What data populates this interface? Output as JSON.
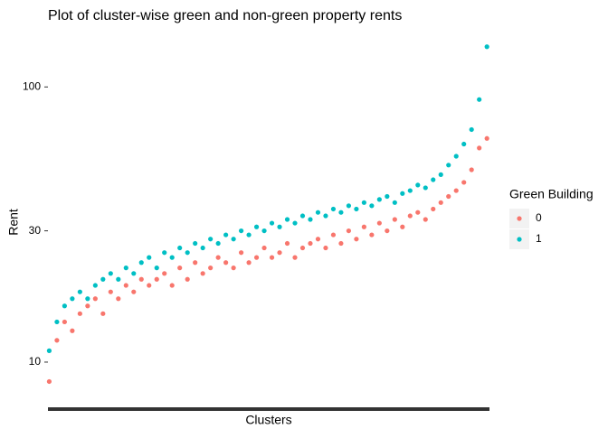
{
  "chart_data": {
    "type": "scatter",
    "title": "Plot of cluster-wise green and non-green property rents",
    "x_label": "Clusters",
    "y_label": "Rent",
    "log_y": true,
    "grid": false,
    "ylim": [
      6.8,
      153
    ],
    "yticks": [
      10,
      30,
      100
    ],
    "xlim": [
      0,
      690
    ],
    "legend_title": "Green Building",
    "legend_position": "right",
    "x": [
      2,
      14,
      26,
      38,
      50,
      62,
      74,
      86,
      98,
      110,
      122,
      134,
      146,
      158,
      170,
      182,
      194,
      206,
      218,
      230,
      242,
      254,
      266,
      278,
      290,
      302,
      314,
      326,
      338,
      350,
      362,
      374,
      386,
      398,
      410,
      422,
      434,
      446,
      458,
      470,
      482,
      494,
      506,
      518,
      530,
      542,
      554,
      566,
      578,
      590,
      602,
      614,
      626,
      638,
      650,
      662,
      674,
      686
    ],
    "series": [
      {
        "name": "0",
        "color": "#F8766D",
        "values": [
          8.5,
          12,
          14,
          13,
          15,
          16,
          17,
          15,
          18,
          17,
          19,
          18,
          20,
          19,
          20,
          21,
          19,
          22,
          20,
          23,
          21,
          22,
          24,
          23,
          22,
          25,
          23,
          24,
          26,
          24,
          25,
          27,
          24,
          26,
          27,
          28,
          26,
          29,
          27,
          30,
          28,
          31,
          29,
          32,
          30,
          33,
          31,
          34,
          35,
          33,
          36,
          38,
          40,
          42,
          45,
          50,
          60,
          65
        ]
      },
      {
        "name": "1",
        "color": "#00BFC4",
        "values": [
          11,
          14,
          16,
          17,
          18,
          17,
          19,
          20,
          21,
          20,
          22,
          21,
          23,
          24,
          22,
          25,
          24,
          26,
          25,
          27,
          26,
          28,
          27,
          29,
          28,
          30,
          29,
          31,
          30,
          32,
          31,
          33,
          32,
          34,
          33,
          35,
          34,
          36,
          35,
          37,
          36,
          38,
          37,
          39,
          40,
          38,
          41,
          42,
          44,
          43,
          46,
          48,
          52,
          56,
          62,
          70,
          90,
          140
        ]
      }
    ]
  }
}
